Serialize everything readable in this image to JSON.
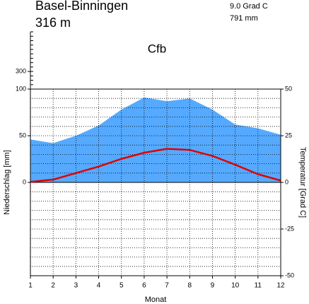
{
  "chart_data": {
    "type": "climate",
    "title": "Basel-Binningen",
    "subtitle": "316 m",
    "annotations": [
      "9.0 Grad C",
      "791 mm",
      "Cfb"
    ],
    "x_label": "Monat",
    "y_label": "Niederschlag [mm]",
    "y2_label": "Temperatur [Grad C]",
    "x": [
      1,
      2,
      3,
      4,
      5,
      6,
      7,
      8,
      9,
      10,
      11,
      12
    ],
    "series": [
      {
        "name": "Niederschlag",
        "color": "#55aaff",
        "values": [
          46,
          42,
          50,
          61,
          78,
          91,
          87,
          90,
          78,
          62,
          58,
          51
        ]
      },
      {
        "name": "Temperatur",
        "color": "#e00000",
        "axis": "y2",
        "values": [
          0.3,
          1.5,
          5.0,
          8.5,
          12.6,
          15.9,
          18.0,
          17.4,
          14.2,
          9.5,
          4.4,
          1.0
        ]
      }
    ],
    "xlim": [
      1,
      12
    ],
    "xticks": [
      1,
      2,
      3,
      4,
      5,
      6,
      7,
      8,
      9,
      10,
      11,
      12
    ],
    "ylim": [
      -100,
      100
    ],
    "yticks": [
      0,
      50,
      100
    ],
    "y2lim": [
      -50,
      50
    ],
    "y2ticks": [
      -50,
      -25,
      0,
      25,
      50
    ],
    "upper_ylim": [
      100,
      750
    ],
    "upper_yticks": [
      300
    ],
    "upper_minor_step": 50,
    "grid": true,
    "minor_grid_step": 5
  }
}
